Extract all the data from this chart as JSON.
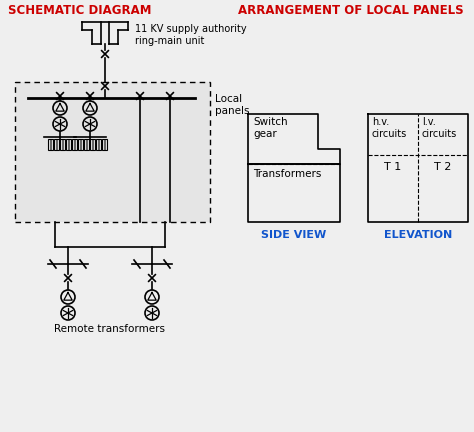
{
  "title_left": "SCHEMATIC DIAGRAM",
  "title_right": "ARRANGEMENT OF LOCAL PANELS",
  "title_color": "#cc0000",
  "title_fontsize": 8.5,
  "bg_color": "#efefef",
  "text_color": "#000000",
  "blue_color": "#1155cc",
  "supply_label": "11 KV supply authority\nring-main unit",
  "local_panels_label": "Local\npanels",
  "side_view_label": "SIDE VIEW",
  "elevation_label": "ELEVATION",
  "switchgear_label": "Switch\ngear",
  "transformers_label": "Transformers",
  "hv_label": "h.v.\ncircuits",
  "lv_label": "l.v.\ncircuits",
  "t1_label": "T 1",
  "t2_label": "T 2",
  "remote_label": "Remote transformers",
  "lw": 1.2
}
